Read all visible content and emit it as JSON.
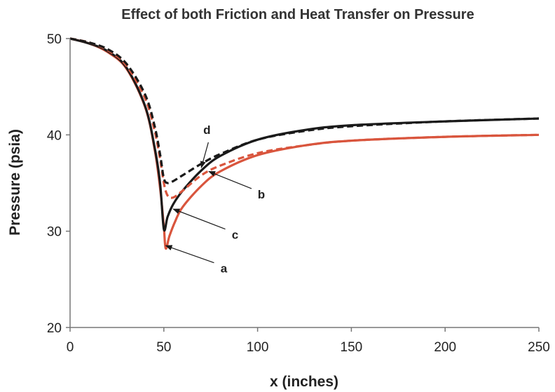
{
  "chart_data": {
    "type": "line",
    "title": "Effect of both Friction and Heat Transfer on Pressure",
    "xlabel": "x (inches)",
    "ylabel": "Pressure (psia)",
    "xlim": [
      0,
      250
    ],
    "ylim": [
      20,
      50
    ],
    "xticks": [
      "0",
      "50",
      "100",
      "150",
      "200",
      "250"
    ],
    "yticks": [
      "20",
      "30",
      "40",
      "50"
    ],
    "grid": false,
    "legend": "none",
    "colors": {
      "black": "#1a1a1a",
      "red": "#d9553d"
    },
    "series": [
      {
        "name": "a",
        "color": "#d9553d",
        "dash": "solid",
        "x": [
          0,
          10,
          20,
          30,
          40,
          45,
          48,
          50,
          51,
          53,
          56,
          60,
          70,
          80,
          100,
          125,
          150,
          200,
          250
        ],
        "y": [
          50,
          49.5,
          48.6,
          46.9,
          42.9,
          38.6,
          34.5,
          30.5,
          28.2,
          29.5,
          31.0,
          32.5,
          34.7,
          36.2,
          37.9,
          38.9,
          39.4,
          39.8,
          40.0
        ]
      },
      {
        "name": "b",
        "color": "#d9553d",
        "dash": "dashed",
        "x": [
          0,
          10,
          20,
          30,
          40,
          45,
          48,
          50,
          52,
          55,
          60,
          70,
          80,
          100,
          125,
          150,
          200,
          250
        ],
        "y": [
          50,
          49.6,
          48.8,
          47.2,
          43.8,
          40.5,
          37.5,
          35.0,
          33.7,
          33.5,
          34.2,
          35.8,
          36.8,
          38.1,
          38.9,
          39.4,
          39.8,
          40.0
        ]
      },
      {
        "name": "c",
        "color": "#1a1a1a",
        "dash": "solid",
        "x": [
          0,
          10,
          20,
          30,
          40,
          45,
          48,
          50,
          52,
          55,
          60,
          70,
          80,
          100,
          125,
          150,
          200,
          250
        ],
        "y": [
          50,
          49.5,
          48.7,
          47.0,
          43.0,
          38.8,
          35.0,
          30.2,
          31.5,
          32.8,
          34.2,
          36.3,
          37.8,
          39.5,
          40.5,
          41.0,
          41.4,
          41.7
        ]
      },
      {
        "name": "d",
        "color": "#1a1a1a",
        "dash": "dashed",
        "x": [
          0,
          10,
          20,
          30,
          40,
          45,
          48,
          50,
          52,
          55,
          60,
          70,
          80,
          100,
          125,
          150,
          200,
          250
        ],
        "y": [
          50,
          49.6,
          48.9,
          47.4,
          44.2,
          41.0,
          38.0,
          35.5,
          35.0,
          35.2,
          35.8,
          37.0,
          38.0,
          39.5,
          40.4,
          40.9,
          41.4,
          41.7
        ]
      }
    ],
    "annotations": [
      {
        "text": "a",
        "at": [
          51,
          28.5
        ],
        "label_at": [
          82,
          25.7
        ]
      },
      {
        "text": "b",
        "at": [
          74,
          36.2
        ],
        "label_at": [
          102,
          33.4
        ]
      },
      {
        "text": "c",
        "at": [
          55,
          32.3
        ],
        "label_at": [
          88,
          29.2
        ]
      },
      {
        "text": "d",
        "at": [
          70,
          36.6
        ],
        "label_at": [
          73,
          40.1
        ]
      }
    ]
  }
}
